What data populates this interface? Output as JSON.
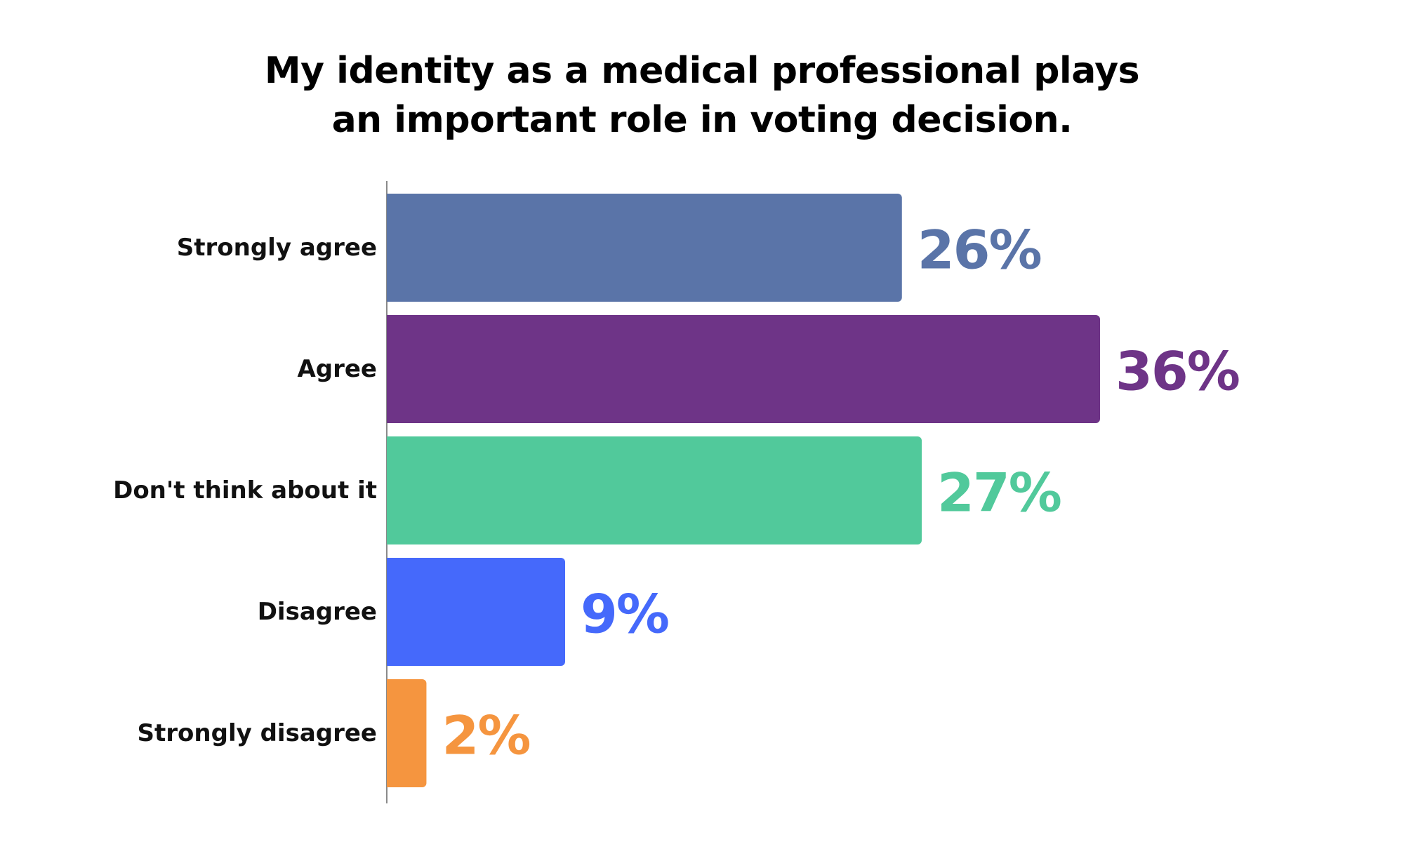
{
  "chart_data": {
    "type": "bar",
    "orientation": "horizontal",
    "title_lines": [
      "My identity as a medical professional plays",
      "an important role in voting decision."
    ],
    "categories": [
      "Strongly agree",
      "Agree",
      "Don't think about it",
      "Disagree",
      "Strongly disagree"
    ],
    "values": [
      26,
      36,
      27,
      9,
      2
    ],
    "value_labels": [
      "26%",
      "36%",
      "27%",
      "9%",
      "2%"
    ],
    "colors": [
      "#5a74a8",
      "#6e3487",
      "#51c99b",
      "#4569fb",
      "#f5953f"
    ],
    "xlim": [
      0,
      36
    ],
    "grid": false,
    "legend": "none"
  }
}
